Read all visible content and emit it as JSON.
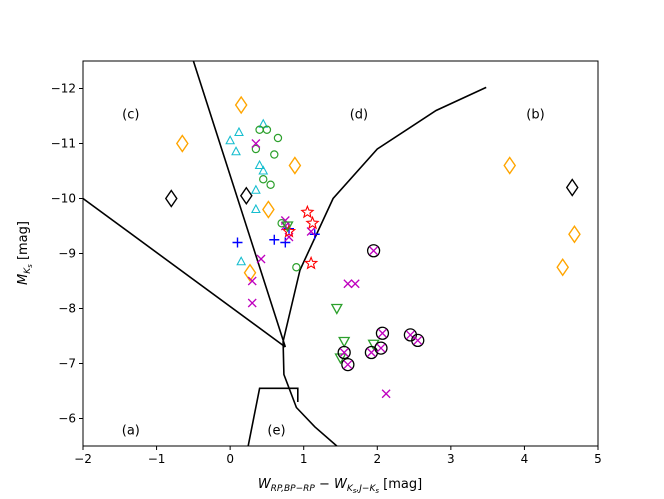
{
  "chart_data": {
    "type": "scatter",
    "title": "",
    "xlabel": {
      "main": "W",
      "sub": "RP,BP−RP",
      "mid": " − W",
      "sub2": "K",
      "sub2sub": "s",
      "sub2tail": ",J−K",
      "sub2tailsub": "s",
      "tail": " [mag]"
    },
    "ylabel": {
      "main": "M",
      "sub": "K",
      "subsub": "s",
      "tail": " [mag]"
    },
    "xlim": [
      -2,
      5
    ],
    "ylim": [
      -5.5,
      -12.5
    ],
    "xticks": [
      -2,
      -1,
      0,
      1,
      2,
      3,
      4,
      5
    ],
    "xtick_labels": [
      "−2",
      "−1",
      "0",
      "1",
      "2",
      "3",
      "4",
      "5"
    ],
    "yticks": [
      -12,
      -11,
      -10,
      -9,
      -8,
      -7,
      -6
    ],
    "ytick_labels": [
      "−12",
      "−11",
      "−10",
      "−9",
      "−8",
      "−7",
      "−6"
    ],
    "colors": {
      "cyan": "#17becf",
      "green": "#2ca02c",
      "orange": "#ffa500",
      "black": "#000000",
      "blue": "#0000ff",
      "magenta": "#bf00bf",
      "red": "#ff0000"
    },
    "region_labels": [
      {
        "text": "(a)",
        "x": -1.35,
        "y": -5.8
      },
      {
        "text": "(b)",
        "x": 4.15,
        "y": -11.55
      },
      {
        "text": "(c)",
        "x": -1.35,
        "y": -11.55
      },
      {
        "text": "(d)",
        "x": 1.75,
        "y": -11.55
      },
      {
        "text": "(e)",
        "x": 0.63,
        "y": -5.8
      }
    ],
    "boundaries": [
      {
        "name": "c-a line",
        "points": [
          [
            -2,
            -10.0
          ],
          [
            0.75,
            -7.3
          ]
        ]
      },
      {
        "name": "c-d line",
        "points": [
          [
            -0.5,
            -12.5
          ],
          [
            0.75,
            -7.3
          ]
        ]
      },
      {
        "name": "d curve",
        "points": [
          [
            3.48,
            -12.02
          ],
          [
            2.8,
            -11.6
          ],
          [
            2.0,
            -10.9
          ],
          [
            1.4,
            -10.0
          ],
          [
            0.95,
            -8.7
          ],
          [
            0.72,
            -7.4
          ],
          [
            0.73,
            -6.8
          ],
          [
            0.9,
            -6.2
          ],
          [
            1.15,
            -5.85
          ],
          [
            1.45,
            -5.5
          ]
        ]
      },
      {
        "name": "e box",
        "points": [
          [
            0.2,
            -5.2
          ],
          [
            0.4,
            -6.55
          ],
          [
            0.92,
            -6.55
          ],
          [
            0.92,
            -6.3
          ]
        ]
      }
    ],
    "series": [
      {
        "name": "triangles",
        "marker": "triangle",
        "color": "cyan",
        "x": [
          0.0,
          0.12,
          0.08,
          0.45,
          0.4,
          0.45,
          0.35,
          0.35,
          0.15
        ],
        "y": [
          -11.05,
          -11.2,
          -10.85,
          -11.35,
          -10.6,
          -10.5,
          -10.15,
          -9.8,
          -8.85
        ]
      },
      {
        "name": "circles",
        "marker": "circle",
        "color": "green",
        "x": [
          0.4,
          0.5,
          0.65,
          0.35,
          0.6,
          0.45,
          0.55,
          0.7,
          0.9
        ],
        "y": [
          -11.25,
          -11.25,
          -11.1,
          -10.9,
          -10.8,
          -10.35,
          -10.25,
          -9.55,
          -8.75
        ]
      },
      {
        "name": "diamonds orange",
        "marker": "diamond",
        "color": "orange",
        "x": [
          0.15,
          -0.65,
          0.88,
          0.52,
          0.27,
          3.8,
          4.68,
          4.52
        ],
        "y": [
          -11.7,
          -11.0,
          -10.6,
          -9.8,
          -8.65,
          -10.6,
          -9.35,
          -8.75
        ]
      },
      {
        "name": "diamonds black",
        "marker": "diamond",
        "color": "black",
        "x": [
          -0.8,
          0.22,
          4.65
        ],
        "y": [
          -10.0,
          -10.05,
          -10.2
        ]
      },
      {
        "name": "plus",
        "marker": "plus",
        "color": "blue",
        "x": [
          0.1,
          0.6,
          0.75,
          0.8,
          1.15
        ],
        "y": [
          -9.2,
          -9.25,
          -9.2,
          -9.45,
          -9.35
        ]
      },
      {
        "name": "x marks",
        "marker": "x",
        "color": "magenta",
        "x": [
          0.35,
          0.75,
          0.75,
          0.8,
          0.42,
          0.3,
          0.3,
          1.6,
          1.7,
          2.12,
          1.1
        ],
        "y": [
          -11.0,
          -9.6,
          -9.5,
          -9.3,
          -8.9,
          -8.5,
          -8.1,
          -8.45,
          -8.45,
          -6.45,
          -9.4
        ]
      },
      {
        "name": "stars",
        "marker": "star",
        "color": "red",
        "x": [
          1.05,
          1.12,
          1.1,
          0.8
        ],
        "y": [
          -9.75,
          -9.55,
          -8.82,
          -9.4
        ]
      },
      {
        "name": "triangles down",
        "marker": "triangle-down",
        "color": "green",
        "x": [
          1.45,
          1.55,
          1.5,
          1.95,
          0.78
        ],
        "y": [
          -8.0,
          -7.4,
          -7.1,
          -7.35,
          -9.5
        ]
      },
      {
        "name": "circled x",
        "marker": "circle-x",
        "color": "black",
        "inner": "magenta",
        "x": [
          1.95,
          1.55,
          1.6,
          1.92,
          2.05,
          2.07,
          2.45,
          2.55
        ],
        "y": [
          -9.05,
          -7.2,
          -6.98,
          -7.2,
          -7.28,
          -7.55,
          -7.52,
          -7.42
        ]
      }
    ]
  }
}
